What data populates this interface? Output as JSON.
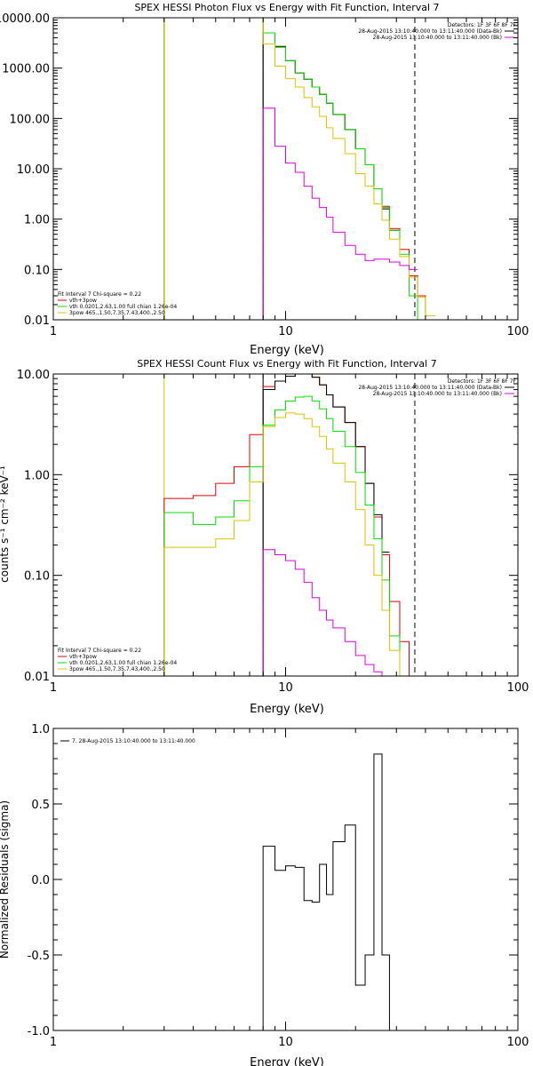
{
  "colors": {
    "background": "#ffffff",
    "axes": "#000000",
    "red": "#e00000",
    "green": "#00e000",
    "yellow": "#e0c000",
    "magenta": "#e000e0",
    "black": "#000000"
  },
  "chart_data": [
    {
      "type": "line",
      "title": "SPEX HESSI Photon Flux vs Energy with Fit Function, Interval 7",
      "xlabel": "Energy (keV)",
      "ylabel": "",
      "xscale": "log",
      "yscale": "log",
      "xlim": [
        1,
        100
      ],
      "ylim": [
        0.01,
        10000
      ],
      "x_ticks": [
        "1",
        "10",
        "100"
      ],
      "y_ticks": [
        "10000.00",
        "1000.00",
        "100.00",
        "10.00",
        "1.00",
        "0.10",
        "0.01"
      ],
      "y_tick_values": [
        10000,
        1000,
        100,
        10,
        1,
        0.1,
        0.01
      ],
      "legend_topright": [
        {
          "text": "Detectors: 1F 3F 6F 8F 7F",
          "color": ""
        },
        {
          "text": "28-Aug-2015 13:10:40.000 to 13:11:40.000 (Data-Bk)",
          "color": "black"
        },
        {
          "text": "28-Aug-2015 13:10:40.000 to 13:11:40.000 (Bk)",
          "color": "magenta"
        }
      ],
      "legend_bottomleft": [
        {
          "text": "Fit Interval 7   Chi-square = 0.22",
          "color": ""
        },
        {
          "text": "vth+3pow",
          "color": "red"
        },
        {
          "text": "vth 0.0201,2.63,1.00  full chian 1.26e-04",
          "color": "green"
        },
        {
          "text": "3pow 465.,1.50,7.35,7.43,400.,2.50",
          "color": "yellow"
        }
      ],
      "vlines": [
        {
          "x": 3.0,
          "color": "yellow",
          "style": "solid"
        },
        {
          "x": 8.0,
          "color": "magenta",
          "style": "dotted"
        },
        {
          "x": 8.0,
          "color": "black",
          "style": "solid"
        },
        {
          "x": 36.0,
          "color": "black",
          "style": "dashed"
        }
      ],
      "bin_edges": [
        8,
        9,
        10,
        11,
        12,
        13,
        14,
        15,
        16,
        18,
        20,
        22,
        24,
        26,
        28,
        31,
        34,
        37,
        40,
        44
      ],
      "series": [
        {
          "color": "red",
          "start_x": 3,
          "pre_value": 10000,
          "values": [
            5000,
            2600,
            1400,
            800,
            600,
            420,
            300,
            200,
            120,
            60,
            25,
            12,
            4,
            1.8,
            0.65,
            0.25,
            0.075,
            0.03,
            0.012
          ]
        },
        {
          "color": "black",
          "start_x": 8,
          "values": [
            5000,
            2700,
            1400,
            800,
            600,
            420,
            300,
            200,
            120,
            60,
            25,
            12,
            4,
            1.6,
            0.6
          ]
        },
        {
          "color": "green",
          "start_x": 3,
          "pre_value": 10000,
          "values": [
            5000,
            2600,
            1400,
            800,
            600,
            420,
            300,
            200,
            120,
            60,
            25,
            12,
            4,
            1.7,
            0.6,
            0.2,
            0.03,
            0.01,
            0.01
          ]
        },
        {
          "color": "yellow",
          "start_x": 3,
          "pre_value": 10000,
          "values": [
            3000,
            1100,
            620,
            420,
            260,
            170,
            110,
            65,
            40,
            20,
            8,
            4.5,
            2,
            0.95,
            0.4,
            0.18,
            0.07,
            0.028,
            0.012
          ]
        },
        {
          "color": "magenta",
          "start_x": 8,
          "values": [
            160,
            28,
            13,
            8.5,
            4.5,
            2.6,
            1.7,
            1.1,
            0.55,
            0.3,
            0.2,
            0.15,
            0.16,
            0.16,
            0.14,
            0.12,
            0.1
          ]
        }
      ]
    },
    {
      "type": "line",
      "title": "SPEX HESSI Count Flux vs Energy with Fit Function, Interval 7",
      "xlabel": "Energy (keV)",
      "ylabel": "counts s⁻¹ cm⁻² keV⁻¹",
      "xscale": "log",
      "yscale": "log",
      "xlim": [
        1,
        100
      ],
      "ylim": [
        0.01,
        10
      ],
      "x_ticks": [
        "1",
        "10",
        "100"
      ],
      "y_ticks": [
        "10.00",
        "1.00",
        "0.10",
        "0.01"
      ],
      "y_tick_values": [
        10,
        1,
        0.1,
        0.01
      ],
      "legend_topright": [
        {
          "text": "Detectors: 1F 3F 6F 8F 7F",
          "color": ""
        },
        {
          "text": "28-Aug-2015 13:10:40.000 to 13:11:40.000 (Data-Bk)",
          "color": "black"
        },
        {
          "text": "28-Aug-2015 13:10:40.000 to 13:11:40.000 (Bk)",
          "color": "magenta"
        }
      ],
      "legend_bottomleft": [
        {
          "text": "Fit Interval 7   Chi-square = 0.22",
          "color": ""
        },
        {
          "text": "vth+3pow",
          "color": "red"
        },
        {
          "text": "vth 0.0201,2.63,1.00  full chian 1.26e-04",
          "color": "green"
        },
        {
          "text": "3pow 465.,1.50,7.35,7.43,400.,2.50",
          "color": "yellow"
        }
      ],
      "vlines": [
        {
          "x": 3.0,
          "color": "yellow",
          "style": "solid"
        },
        {
          "x": 8.0,
          "color": "magenta",
          "style": "dotted"
        },
        {
          "x": 8.0,
          "color": "black",
          "style": "solid"
        },
        {
          "x": 36.0,
          "color": "black",
          "style": "dashed"
        }
      ],
      "bin_edges": [
        3,
        4,
        5,
        6,
        7,
        8,
        9,
        10,
        11,
        12,
        13,
        14,
        15,
        16,
        18,
        20,
        22,
        24,
        26,
        28,
        31,
        34,
        37
      ],
      "series": [
        {
          "color": "red",
          "values": [
            0.58,
            0.62,
            0.82,
            1.2,
            2.5,
            7.5,
            8.5,
            9.5,
            10.2,
            10.2,
            9.3,
            7.8,
            6.2,
            4.7,
            3.3,
            1.9,
            0.82,
            0.38,
            0.16,
            0.055,
            0.022,
            0.01
          ]
        },
        {
          "color": "black",
          "start_index": 5,
          "values": [
            7.0,
            8.5,
            9.5,
            10.3,
            10.2,
            9.3,
            7.8,
            6.2,
            4.7,
            3.3,
            1.9,
            0.82,
            0.4,
            0.17
          ]
        },
        {
          "color": "green",
          "values": [
            0.42,
            0.32,
            0.38,
            0.55,
            1.2,
            3.1,
            4.4,
            5.4,
            5.9,
            6.0,
            5.4,
            4.5,
            3.6,
            2.7,
            1.9,
            1.05,
            0.5,
            0.23,
            0.09,
            0.025,
            0.01,
            0.01
          ]
        },
        {
          "color": "yellow",
          "values": [
            0.19,
            0.19,
            0.23,
            0.35,
            0.85,
            3.0,
            3.7,
            4.1,
            4.0,
            3.6,
            3.0,
            2.4,
            1.8,
            1.3,
            0.85,
            0.45,
            0.2,
            0.1,
            0.045,
            0.018,
            0.01,
            0.01
          ]
        },
        {
          "color": "magenta",
          "start_index": 5,
          "values": [
            0.18,
            0.16,
            0.14,
            0.115,
            0.085,
            0.06,
            0.045,
            0.036,
            0.03,
            0.022,
            0.016,
            0.013,
            0.011,
            0.01,
            0.01,
            0.01
          ]
        }
      ]
    },
    {
      "type": "line",
      "title": "",
      "xlabel": "Energy (keV)",
      "ylabel": "Normalized Residuals (sigma)",
      "xscale": "log",
      "yscale": "linear",
      "xlim": [
        1,
        100
      ],
      "ylim": [
        -1.0,
        1.0
      ],
      "x_ticks": [
        "1",
        "10",
        "100"
      ],
      "y_ticks": [
        "1.0",
        "0.5",
        "0.0",
        "-0.5",
        "-1.0"
      ],
      "y_tick_values": [
        1.0,
        0.5,
        0.0,
        -0.5,
        -1.0
      ],
      "legend_topleft": [
        {
          "text": "7. 28-Aug-2015 13:10:40.000 to 13:11:40.000",
          "color": "black"
        }
      ],
      "bin_edges": [
        8,
        9,
        10,
        11,
        12,
        13,
        14,
        15,
        16,
        18,
        20,
        22,
        24,
        26,
        28,
        31,
        34,
        37
      ],
      "series": [
        {
          "color": "black",
          "values": [
            0.22,
            0.06,
            0.09,
            0.08,
            -0.14,
            -0.15,
            0.1,
            -0.1,
            0.25,
            0.36,
            -0.7,
            -0.5,
            0.83,
            -0.5,
            -1.0,
            -1.0,
            -1.0
          ]
        }
      ]
    }
  ]
}
